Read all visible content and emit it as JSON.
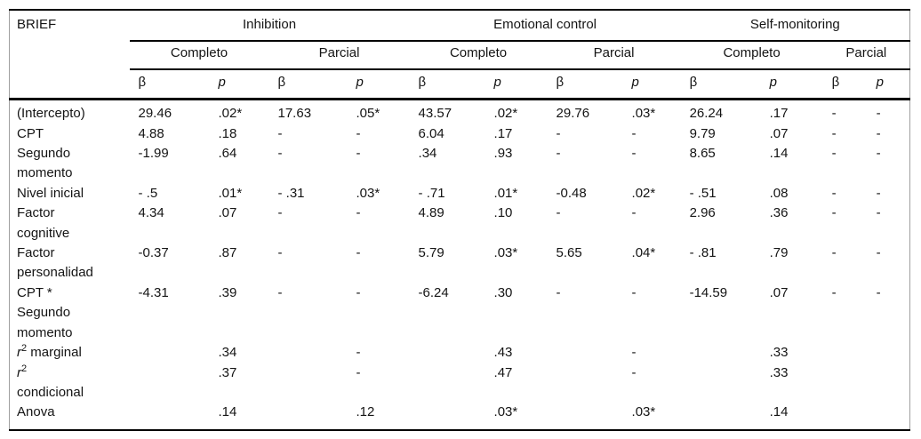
{
  "table": {
    "corner_label": "BRIEF",
    "beta_symbol": "β",
    "p_symbol": "p",
    "groups": [
      {
        "label": "Inhibition"
      },
      {
        "label": "Emotional control"
      },
      {
        "label": "Self-monitoring"
      }
    ],
    "subgroup_labels": [
      "Completo",
      "Parcial",
      "Completo",
      "Parcial",
      "Completo",
      "Parcial"
    ],
    "rows": [
      {
        "label": "(Intercepto)",
        "values": [
          "29.46",
          ".02*",
          "17.63",
          ".05*",
          "43.57",
          ".02*",
          "29.76",
          ".03*",
          "26.24",
          ".17",
          "-",
          "-"
        ]
      },
      {
        "label": "CPT",
        "values": [
          "4.88",
          ".18",
          "-",
          "-",
          "6.04",
          ".17",
          "-",
          "-",
          "9.79",
          ".07",
          "-",
          "-"
        ]
      },
      {
        "label": "Segundo\nmomento",
        "values": [
          "-1.99",
          ".64",
          "-",
          "-",
          ".34",
          ".93",
          "-",
          "-",
          "8.65",
          ".14",
          "-",
          "-"
        ]
      },
      {
        "label": "Nivel inicial",
        "values": [
          "- .5",
          ".01*",
          "- .31",
          ".03*",
          "- .71",
          ".01*",
          "-0.48",
          ".02*",
          "- .51",
          ".08",
          "-",
          "-"
        ]
      },
      {
        "label": "Factor\ncognitive",
        "values": [
          "4.34",
          ".07",
          "-",
          "-",
          "4.89",
          ".10",
          "-",
          "-",
          "2.96",
          ".36",
          "-",
          "-"
        ]
      },
      {
        "label": "Factor\npersonalidad",
        "values": [
          "-0.37",
          ".87",
          "-",
          "-",
          "5.79",
          ".03*",
          "5.65",
          ".04*",
          "- .81",
          ".79",
          "-",
          "-"
        ]
      },
      {
        "label": "CPT *\nSegundo\nmomento",
        "values": [
          "-4.31",
          ".39",
          "-",
          "-",
          "-6.24",
          ".30",
          "-",
          "-",
          "-14.59",
          ".07",
          "-",
          "-"
        ]
      },
      {
        "label_i": "r",
        "label_sup": "2",
        "label_rest": " marginal",
        "values": [
          "",
          ".34",
          "",
          "-",
          "",
          ".43",
          "",
          "-",
          "",
          ".33",
          "",
          ""
        ]
      },
      {
        "label_i": "r",
        "label_sup": "2",
        "label_rest": "\ncondicional",
        "values": [
          "",
          ".37",
          "",
          "-",
          "",
          ".47",
          "",
          "-",
          "",
          ".33",
          "",
          ""
        ]
      },
      {
        "label": "Anova",
        "values": [
          "",
          ".14",
          "",
          ".12",
          "",
          ".03*",
          "",
          ".03*",
          "",
          ".14",
          "",
          ""
        ]
      }
    ]
  }
}
